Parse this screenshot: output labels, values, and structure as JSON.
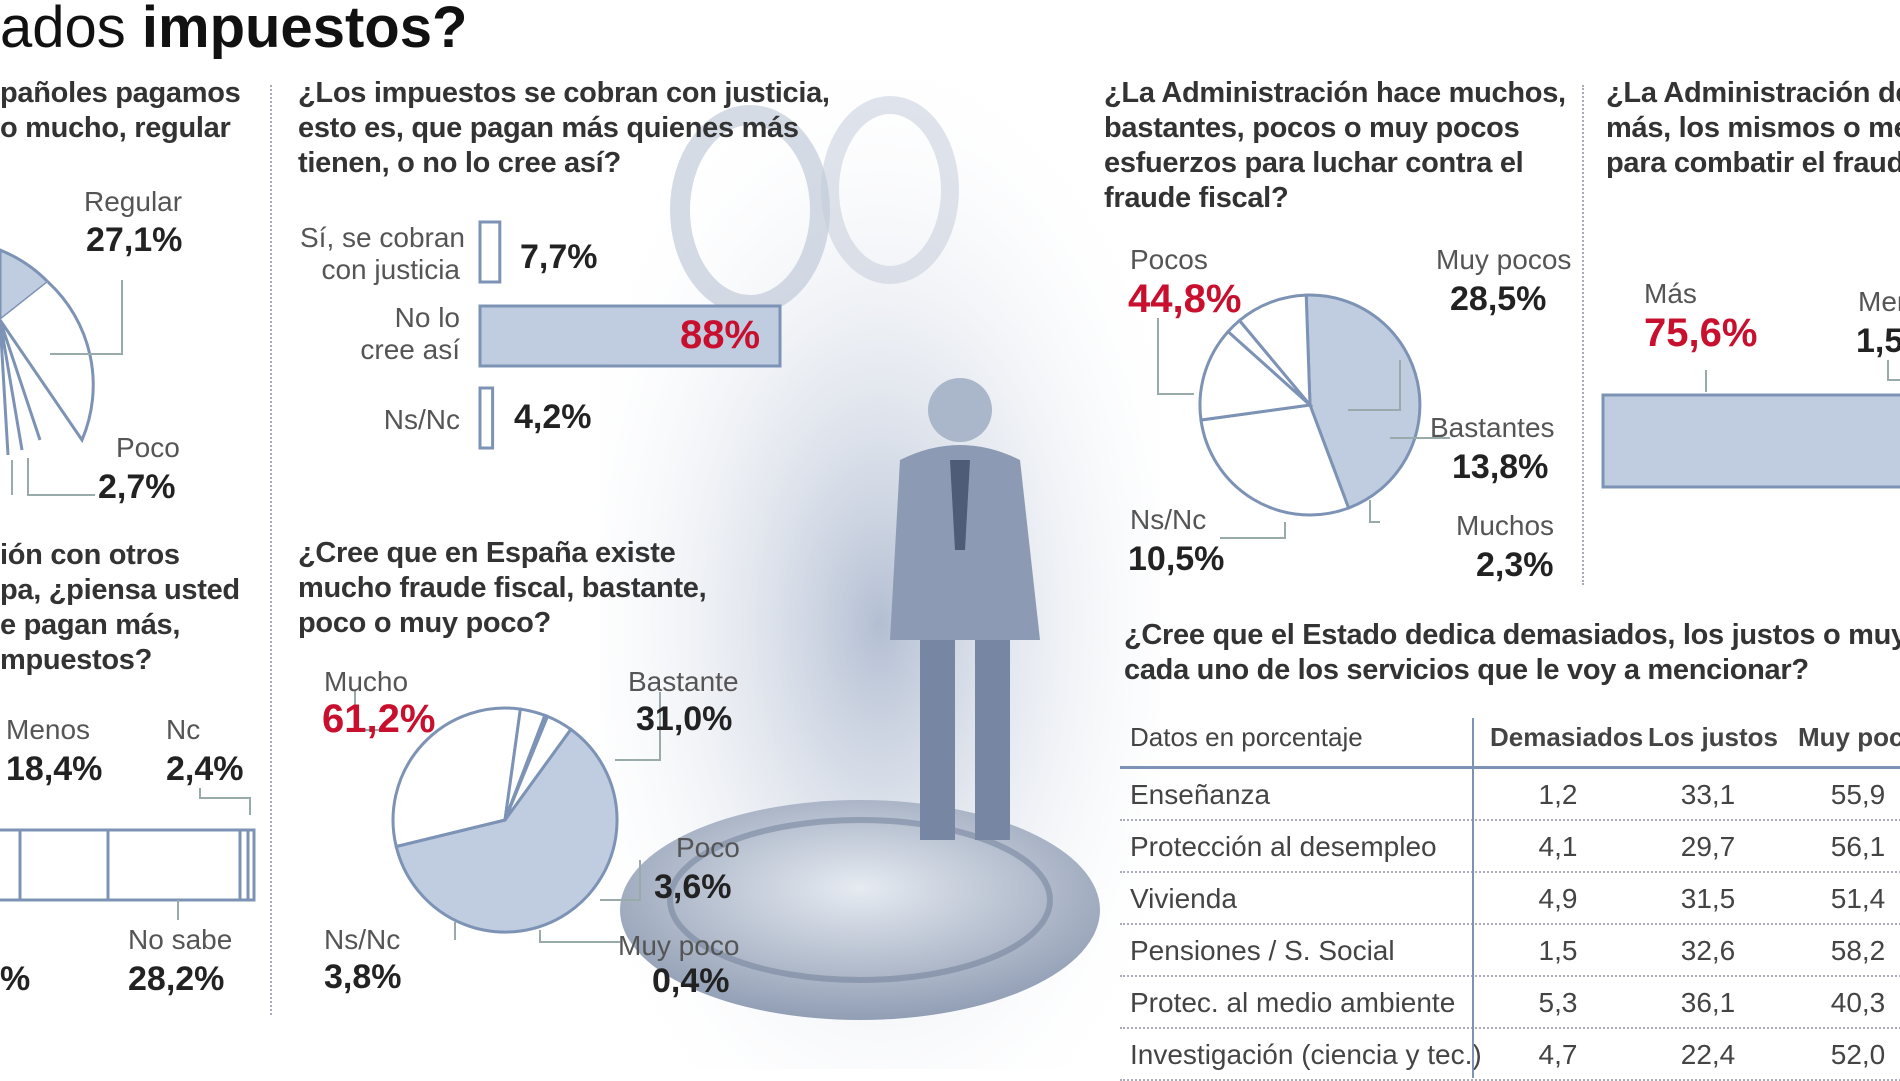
{
  "headline": {
    "light": "ados ",
    "bold": "impuestos?"
  },
  "panel_left_top": {
    "question": [
      "pañoles pagamos",
      "o mucho, regular"
    ],
    "labels": {
      "regular": "Regular",
      "regular_val": "27,1%",
      "poco": "Poco",
      "poco_val": "2,7%"
    }
  },
  "panel_left_bottom": {
    "question": [
      "ión con otros",
      "pa, ¿piensa usted",
      "e pagan más,",
      "mpuestos?"
    ],
    "labels": {
      "menos": "Menos",
      "menos_val": "18,4%",
      "nc": "Nc",
      "nc_val": "2,4%",
      "nosabe": "No sabe",
      "nosabe_val": "28,2%",
      "cut_val": "%"
    }
  },
  "panel_justicia": {
    "question": [
      "¿Los impuestos se cobran con justicia,",
      "esto es, que pagan más quienes más",
      "tienen, o no lo cree así?"
    ],
    "rows": [
      {
        "label": [
          "Sí, se cobran",
          "con justicia"
        ],
        "value": "7,7%",
        "pct": 7.7
      },
      {
        "label": [
          "No lo",
          "cree así"
        ],
        "value": "88%",
        "pct": 88
      },
      {
        "label": [
          "Ns/Nc"
        ],
        "value": "4,2%",
        "pct": 4.2
      }
    ]
  },
  "panel_fraude": {
    "question": [
      "¿Cree que en España existe",
      "mucho fraude fiscal, bastante,",
      "poco o muy poco?"
    ],
    "labels": {
      "mucho": "Mucho",
      "mucho_val": "61,2%",
      "bastante": "Bastante",
      "bastante_val": "31,0%",
      "poco": "Poco",
      "poco_val": "3,6%",
      "muypoco": "Muy poco",
      "muypoco_val": "0,4%",
      "nsnc": "Ns/Nc",
      "nsnc_val": "3,8%"
    }
  },
  "panel_admin": {
    "question": [
      "¿La Administración hace muchos,",
      "bastantes, pocos o muy pocos",
      "esfuerzos para luchar contra el",
      "fraude fiscal?"
    ],
    "labels": {
      "pocos": "Pocos",
      "pocos_val": "44,8%",
      "muypocos": "Muy pocos",
      "muypocos_val": "28,5%",
      "bastantes": "Bastantes",
      "bastantes_val": "13,8%",
      "muchos": "Muchos",
      "muchos_val": "2,3%",
      "nsnc": "Ns/Nc",
      "nsnc_val": "10,5%"
    }
  },
  "panel_admin2": {
    "question": [
      "¿La Administración de",
      "más, los mismos o me",
      "para combatir el fraud"
    ],
    "labels": {
      "mas": "Más",
      "mas_val": "75,6%",
      "menos": "Men",
      "menos_val": "1,5"
    }
  },
  "panel_servicios": {
    "question": [
      "¿Cree que el Estado dedica demasiados, los justos o muy p",
      "cada uno de los servicios que le voy a mencionar?"
    ],
    "header": [
      "Datos en porcentaje",
      "Demasiados",
      "Los justos",
      "Muy poco"
    ],
    "rows": [
      [
        "Enseñanza",
        "1,2",
        "33,1",
        "55,9"
      ],
      [
        "Protección al desempleo",
        "4,1",
        "29,7",
        "56,1"
      ],
      [
        "Vivienda",
        "4,9",
        "31,5",
        "51,4"
      ],
      [
        "Pensiones / S. Social",
        "1,5",
        "32,6",
        "58,2"
      ],
      [
        "Protec. al medio ambiente",
        "5,3",
        "36,1",
        "40,3"
      ],
      [
        "Investigación (ciencia y tec.)",
        "4,7",
        "22,4",
        "52,0"
      ]
    ]
  },
  "colors": {
    "fill": "#c0cde0",
    "stroke": "#7d93b5",
    "red": "#c8102e",
    "text": "#2a2a2a"
  },
  "chart_data": [
    {
      "type": "pie",
      "title": "¿La Administración hace muchos, bastantes, pocos o muy pocos esfuerzos para luchar contra el fraude fiscal?",
      "categories": [
        "Pocos",
        "Muy pocos",
        "Bastantes",
        "Muchos",
        "Ns/Nc"
      ],
      "values": [
        44.8,
        28.5,
        13.8,
        2.3,
        10.5
      ]
    },
    {
      "type": "pie",
      "title": "¿Cree que en España existe mucho fraude fiscal, bastante, poco o muy poco?",
      "categories": [
        "Mucho",
        "Bastante",
        "Poco",
        "Muy poco",
        "Ns/Nc"
      ],
      "values": [
        61.2,
        31.0,
        3.6,
        0.4,
        3.8
      ]
    },
    {
      "type": "bar",
      "title": "¿Los impuestos se cobran con justicia, esto es, que pagan más quienes más tienen, o no lo cree así?",
      "categories": [
        "Sí, se cobran con justicia",
        "No lo cree así",
        "Ns/Nc"
      ],
      "values": [
        7.7,
        88,
        4.2
      ]
    },
    {
      "type": "table",
      "title": "¿Cree que el Estado dedica demasiados, los justos o muy pocos recursos a cada uno de los servicios que le voy a mencionar?",
      "columns": [
        "Demasiados",
        "Los justos",
        "Muy poco"
      ],
      "rows": [
        "Enseñanza",
        "Protección al desempleo",
        "Vivienda",
        "Pensiones / S. Social",
        "Protec. al medio ambiente",
        "Investigación (ciencia y tec.)"
      ],
      "values": [
        [
          1.2,
          33.1,
          55.9
        ],
        [
          4.1,
          29.7,
          56.1
        ],
        [
          4.9,
          31.5,
          51.4
        ],
        [
          1.5,
          32.6,
          58.2
        ],
        [
          5.3,
          36.1,
          40.3
        ],
        [
          4.7,
          22.4,
          52.0
        ]
      ]
    }
  ]
}
